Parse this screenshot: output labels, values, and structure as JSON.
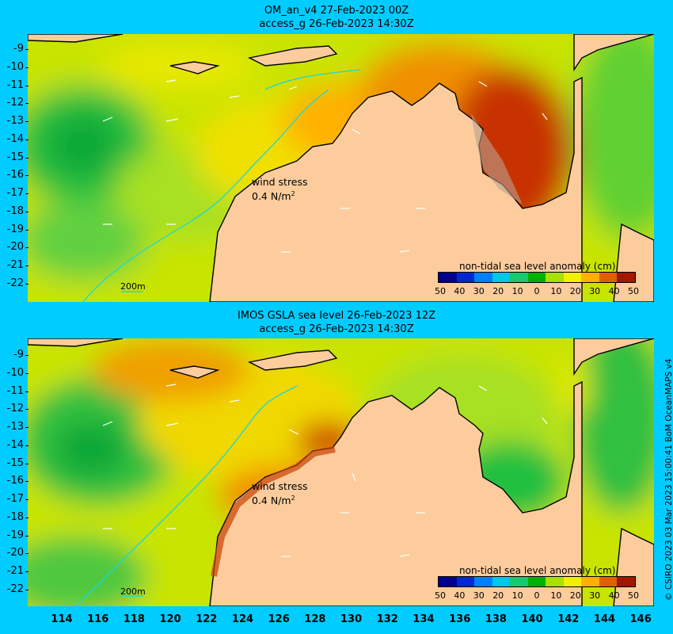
{
  "panels": [
    {
      "title_line1": "OM_an_v4  27-Feb-2023 00Z",
      "title_line2": "access_g 26-Feb-2023 14:30Z",
      "wind_label": "wind stress",
      "wind_value": "0.4 N/m",
      "wind_unit_exp": "2",
      "scale_bar": "200m",
      "colorbar_title": "non-tidal sea level anomaly (cm)"
    },
    {
      "title_line1": "IMOS GSLA sea level  26-Feb-2023 12Z",
      "title_line2": "access_g 26-Feb-2023 14:30Z",
      "wind_label": "wind stress",
      "wind_value": "0.4 N/m",
      "wind_unit_exp": "2",
      "scale_bar": "200m",
      "colorbar_title": "non-tidal sea level anomaly (cm)"
    }
  ],
  "lat_ticks": [
    "-9",
    "-10",
    "-11",
    "-12",
    "-13",
    "-14",
    "-15",
    "-16",
    "-17",
    "-18",
    "-19",
    "-20",
    "-21",
    "-22"
  ],
  "lon_ticks": [
    "114",
    "116",
    "118",
    "120",
    "122",
    "124",
    "126",
    "128",
    "130",
    "132",
    "134",
    "136",
    "138",
    "140",
    "142",
    "144",
    "146"
  ],
  "colorbar_ticks": [
    "50",
    "40",
    "30",
    "20",
    "10",
    "0",
    "10",
    "20",
    "30",
    "40",
    "50"
  ],
  "colorbar_colors": [
    "#00008b",
    "#0028d0",
    "#0080ff",
    "#00c8e6",
    "#19c870",
    "#00b000",
    "#a8e000",
    "#f0f000",
    "#ffb000",
    "#e06000",
    "#a01800"
  ],
  "colors": {
    "background": "#00ccff",
    "land": "#fccc9c",
    "coast": "#000000",
    "isobath": "#1ad8d8"
  },
  "credit": "© CSIRO 2023   03 Mar 2023 15:00:41 BoM OceanMAPS v4"
}
